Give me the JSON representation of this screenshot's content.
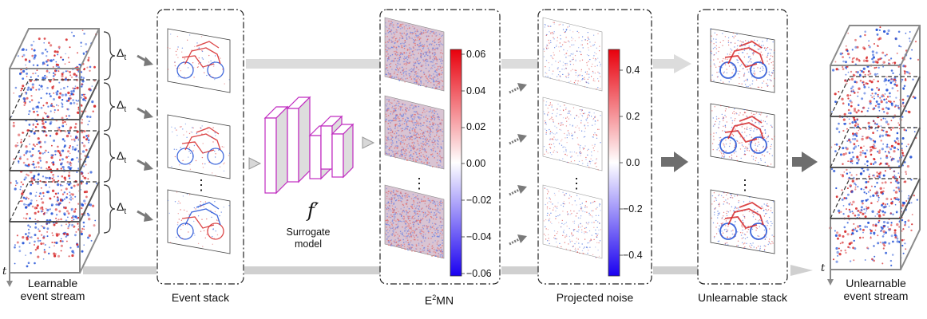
{
  "labels": {
    "learnable_stream": [
      "Learnable",
      "event stream"
    ],
    "event_stack": "Event stack",
    "surrogate_model": [
      "Surrogate",
      "model"
    ],
    "f_prime": "f′",
    "e2mn_main": "E",
    "e2mn_sup": "2",
    "e2mn_tail": "MN",
    "projected_noise": "Projected noise",
    "unlearnable_stack": "Unlearnable stack",
    "unlearnable_stream": [
      "Unlearnable",
      "event stream"
    ],
    "delta": "Δ",
    "delta_sub": "t",
    "axis_t": "t",
    "dots": "⋮"
  },
  "colorbars": [
    {
      "ticks": [
        "0.06",
        "0.04",
        "0.02",
        "0.00",
        "−0.02",
        "−0.04",
        "−0.06"
      ],
      "range": [
        -0.06,
        0.06
      ]
    },
    {
      "ticks": [
        "0.4",
        "0.2",
        "0.0",
        "−0.2",
        "−0.4"
      ],
      "range": [
        -0.5,
        0.5
      ]
    }
  ],
  "colors": {
    "positive": "#d62728",
    "negative": "#1f4fd6",
    "arrow_light": "#d0d0d0",
    "arrow_dark": "#6e6e6e",
    "network": "#cc33cc"
  }
}
